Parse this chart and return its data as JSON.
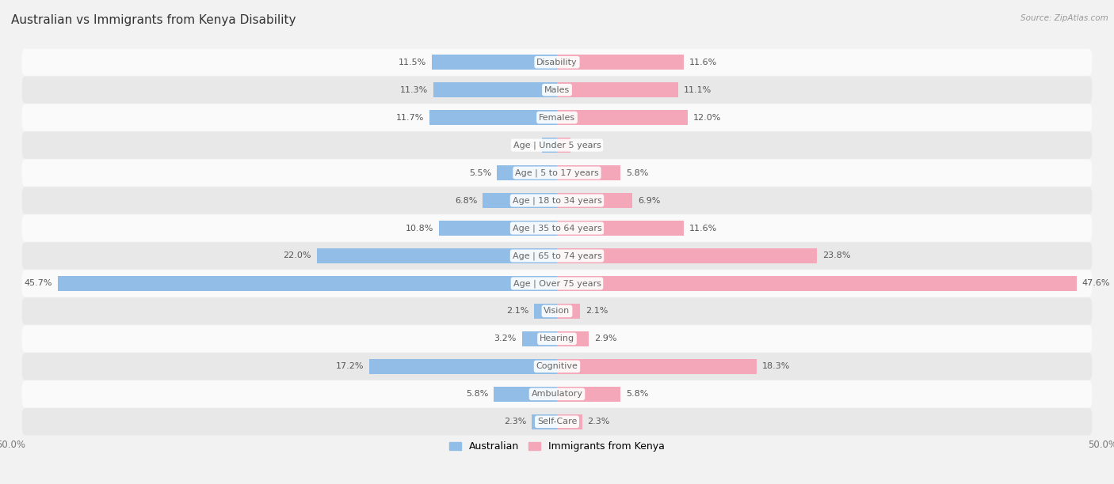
{
  "title": "Australian vs Immigrants from Kenya Disability",
  "source": "Source: ZipAtlas.com",
  "categories": [
    "Disability",
    "Males",
    "Females",
    "Age | Under 5 years",
    "Age | 5 to 17 years",
    "Age | 18 to 34 years",
    "Age | 35 to 64 years",
    "Age | 65 to 74 years",
    "Age | Over 75 years",
    "Vision",
    "Hearing",
    "Cognitive",
    "Ambulatory",
    "Self-Care"
  ],
  "australian": [
    11.5,
    11.3,
    11.7,
    1.4,
    5.5,
    6.8,
    10.8,
    22.0,
    45.7,
    2.1,
    3.2,
    17.2,
    5.8,
    2.3
  ],
  "kenya": [
    11.6,
    11.1,
    12.0,
    1.2,
    5.8,
    6.9,
    11.6,
    23.8,
    47.6,
    2.1,
    2.9,
    18.3,
    5.8,
    2.3
  ],
  "australian_color": "#92bde7",
  "kenya_color": "#f4a7b9",
  "bg_color": "#f2f2f2",
  "row_bg_light": "#fafafa",
  "row_bg_dark": "#e8e8e8",
  "max_value": 50.0,
  "title_fontsize": 11,
  "label_fontsize": 8,
  "cat_fontsize": 8,
  "axis_label_fontsize": 8.5,
  "legend_fontsize": 9
}
